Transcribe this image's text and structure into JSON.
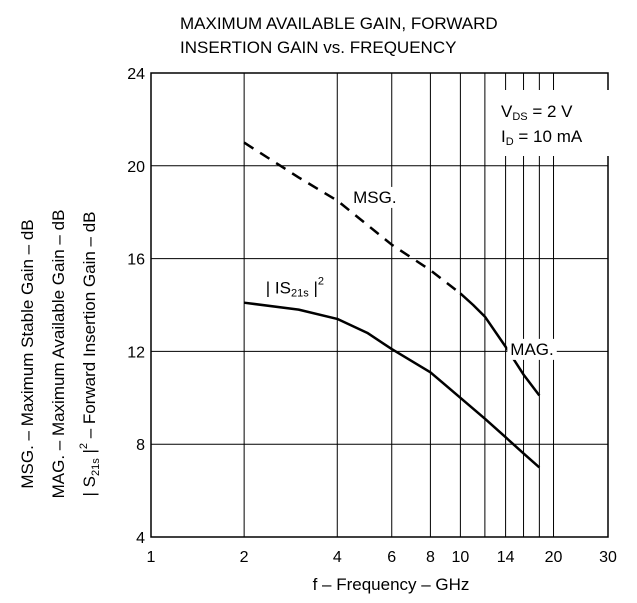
{
  "chart_data": {
    "type": "line",
    "title_line1": "MAXIMUM AVAILABLE GAIN, FORWARD",
    "title_line2": "INSERTION GAIN vs. FREQUENCY",
    "xlabel": "f – Frequency – GHz",
    "ylabel_lines": [
      "MSG. – Maximum Stable Gain – dB",
      "MAG. – Maximum Available Gain – dB",
      {
        "pre": "| S",
        "sub": "21s",
        "mid": " |",
        "sup": "2",
        "post": " – Forward Insertion Gain – dB"
      }
    ],
    "x_scale": "log",
    "xlim": [
      1,
      30
    ],
    "ylim": [
      4,
      24
    ],
    "x_ticks": [
      1,
      2,
      4,
      6,
      8,
      10,
      14,
      20,
      30
    ],
    "y_ticks": [
      4,
      8,
      12,
      16,
      20,
      24
    ],
    "x_gridlines": [
      2,
      4,
      6,
      8,
      10,
      12,
      14,
      16,
      18,
      20
    ],
    "grid": true,
    "conditions": [
      {
        "main": "V",
        "sub": "DS",
        "rest": " = 2 V"
      },
      {
        "main": "I",
        "sub": "D",
        "rest": " = 10 mA"
      }
    ],
    "series": [
      {
        "name": "MSG.",
        "style": "dashed",
        "x": [
          2,
          3,
          4,
          6,
          8,
          10
        ],
        "y": [
          21.0,
          19.5,
          18.5,
          16.6,
          15.5,
          14.5
        ]
      },
      {
        "name": "MAG.",
        "style": "solid",
        "x": [
          10,
          11,
          12,
          14,
          16,
          18
        ],
        "y": [
          14.5,
          14.0,
          13.5,
          12.2,
          11.0,
          10.1
        ]
      },
      {
        "name": "| IS21s |2",
        "label_parts": {
          "pre": "| IS",
          "sub": "21s",
          "mid": " |",
          "sup": "2"
        },
        "style": "solid",
        "x": [
          2,
          3,
          4,
          5,
          6,
          8,
          10,
          12,
          14,
          16,
          18
        ],
        "y": [
          14.1,
          13.8,
          13.4,
          12.8,
          12.1,
          11.1,
          10.0,
          9.1,
          8.3,
          7.6,
          7.0
        ]
      }
    ],
    "annotation_values": {
      "MSG.": [
        4.5,
        18.4
      ],
      "MAG.": [
        14.5,
        11.85
      ],
      "S21": [
        2.35,
        14.5
      ]
    },
    "colors": {
      "line": "#000000",
      "grid": "#000000",
      "background": "#ffffff"
    }
  }
}
